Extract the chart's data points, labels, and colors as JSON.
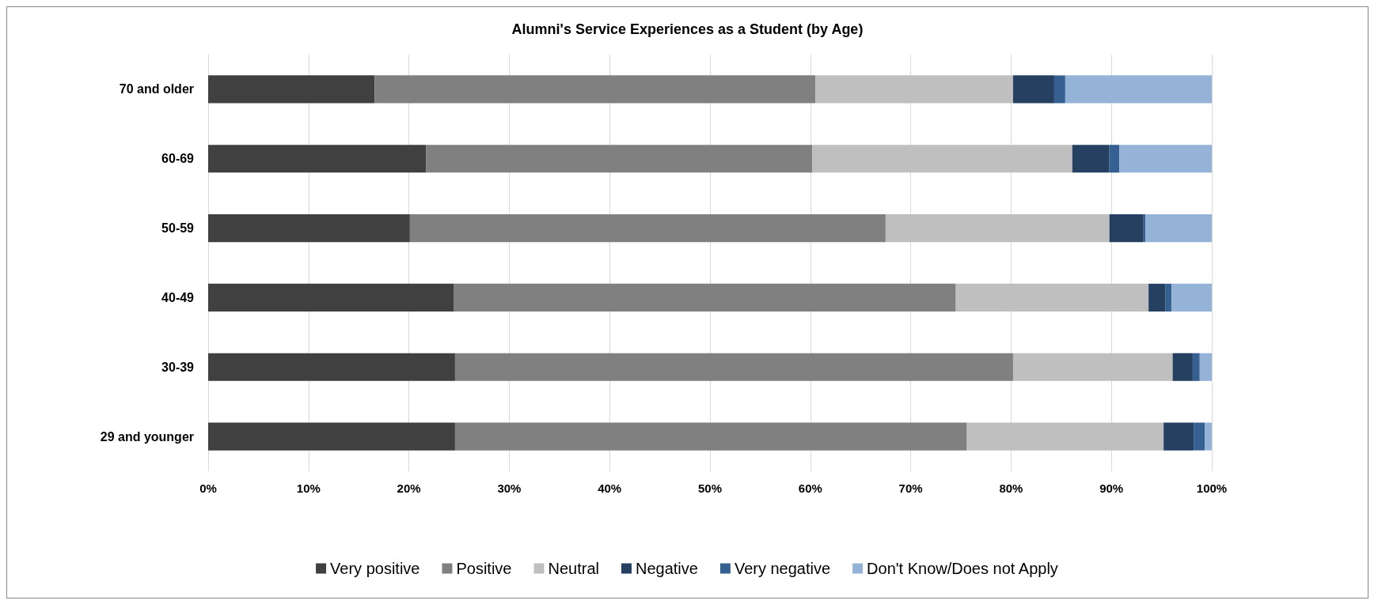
{
  "chart_data": {
    "type": "bar",
    "orientation": "horizontal",
    "stacked": true,
    "title": "Alumni's Service Experiences as a Student (by Age)",
    "categories": [
      "70 and older",
      "60-69",
      "50-59",
      "40-49",
      "30-39",
      "29 and younger"
    ],
    "series": [
      {
        "name": "Very positive",
        "color": "#404040",
        "values": [
          16.6,
          21.7,
          20.1,
          24.5,
          24.6,
          24.6
        ]
      },
      {
        "name": "Positive",
        "color": "#808080",
        "values": [
          43.9,
          38.5,
          47.4,
          50.0,
          55.6,
          51.0
        ]
      },
      {
        "name": "Neutral",
        "color": "#bfbfbf",
        "values": [
          19.7,
          25.9,
          22.3,
          19.2,
          15.9,
          19.6
        ]
      },
      {
        "name": "Negative",
        "color": "#254061",
        "values": [
          4.1,
          3.7,
          3.4,
          1.7,
          2.0,
          3.0
        ]
      },
      {
        "name": "Very negative",
        "color": "#376092",
        "values": [
          1.1,
          1.0,
          0.2,
          0.6,
          0.7,
          1.1
        ]
      },
      {
        "name": "Don't Know/Does not Apply",
        "color": "#95b3d7",
        "values": [
          14.6,
          9.2,
          6.6,
          4.0,
          1.2,
          0.7
        ]
      }
    ],
    "xlim": [
      0,
      100
    ],
    "xticks": [
      {
        "value": 0,
        "label": "0%"
      },
      {
        "value": 10,
        "label": "10%"
      },
      {
        "value": 20,
        "label": "20%"
      },
      {
        "value": 30,
        "label": "30%"
      },
      {
        "value": 40,
        "label": "40%"
      },
      {
        "value": 50,
        "label": "50%"
      },
      {
        "value": 60,
        "label": "60%"
      },
      {
        "value": 70,
        "label": "70%"
      },
      {
        "value": 80,
        "label": "80%"
      },
      {
        "value": 90,
        "label": "90%"
      },
      {
        "value": 100,
        "label": "100%"
      }
    ],
    "grid": "x",
    "legend": "bottom"
  }
}
